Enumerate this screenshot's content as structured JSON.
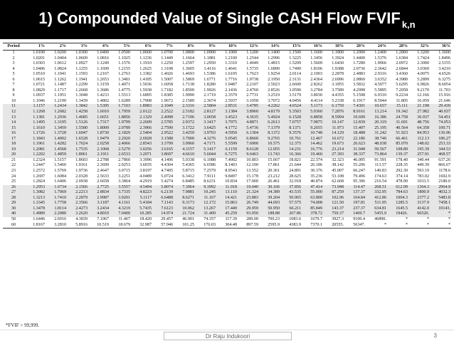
{
  "title": {
    "main": "1) Compounded Value of Single CASH Flow FVIF",
    "subscript": "k,n"
  },
  "table": {
    "headers": [
      "Period",
      "1%",
      "2%",
      "3%",
      "4%",
      "5%",
      "6%",
      "7%",
      "8%",
      "9%",
      "10%",
      "12%",
      "14%",
      "15%",
      "16%",
      "18%",
      "20%",
      "24%",
      "28%",
      "32%",
      "36%"
    ],
    "rows": [
      [
        "1",
        "1.0100",
        "1.0200",
        "1.0300",
        "1.0400",
        "1.0500",
        "1.0600",
        "1.0700",
        "1.0800",
        "1.0900",
        "1.1000",
        "1.1200",
        "1.1400",
        "1.1500",
        "1.1600",
        "1.1800",
        "1.2000",
        "1.2400",
        "1.2800",
        "1.3200",
        "1.3600"
      ],
      [
        "2",
        "1.0201",
        "1.0404",
        "1.0609",
        "1.0816",
        "1.1025",
        "1.1236",
        "1.1449",
        "1.1664",
        "1.1881",
        "1.2100",
        "1.2544",
        "1.2996",
        "1.3225",
        "1.3456",
        "1.3924",
        "1.4400",
        "1.5376",
        "1.6384",
        "1.7424",
        "1.8496"
      ],
      [
        "3",
        "1.0303",
        "1.0612",
        "1.0927",
        "1.1249",
        "1.1576",
        "1.1910",
        "1.2250",
        "1.2597",
        "1.2950",
        "1.3310",
        "1.4049",
        "1.4815",
        "1.5209",
        "1.5609",
        "1.6430",
        "1.7280",
        "1.9066",
        "2.0972",
        "2.3000",
        "2.5155"
      ],
      [
        "4",
        "1.0406",
        "1.0824",
        "1.1255",
        "1.1699",
        "1.2155",
        "1.2625",
        "1.3108",
        "1.3605",
        "1.4116",
        "1.4641",
        "1.5735",
        "1.6890",
        "1.7490",
        "1.8106",
        "1.9388",
        "2.0736",
        "2.3642",
        "2.6844",
        "3.0360",
        "3.4210"
      ],
      [
        "5",
        "1.0510",
        "1.1041",
        "1.1593",
        "1.2167",
        "1.2763",
        "1.3382",
        "1.4026",
        "1.4693",
        "1.5386",
        "1.6105",
        "1.7623",
        "1.9254",
        "2.0114",
        "2.1003",
        "2.2878",
        "2.4883",
        "2.9316",
        "3.4360",
        "4.0075",
        "4.6526"
      ],
      [
        "6",
        "1.0615",
        "1.1262",
        "1.1941",
        "1.2653",
        "1.3401",
        "1.4185",
        "1.5007",
        "1.5869",
        "1.6771",
        "1.7716",
        "1.9738",
        "2.1950",
        "2.3131",
        "2.4364",
        "2.6996",
        "2.9860",
        "3.6352",
        "4.3980",
        "5.2899",
        "6.3275"
      ],
      [
        "7",
        "1.0721",
        "1.1487",
        "1.2299",
        "1.3159",
        "1.4071",
        "1.5036",
        "1.6058",
        "1.7138",
        "1.8280",
        "1.9487",
        "2.2107",
        "2.5023",
        "2.6600",
        "2.8262",
        "3.1855",
        "3.5832",
        "4.5077",
        "5.6295",
        "6.9826",
        "8.6054"
      ],
      [
        "8",
        "1.0829",
        "1.1717",
        "1.2668",
        "1.3686",
        "1.4775",
        "1.5938",
        "1.7182",
        "1.8509",
        "1.9926",
        "2.1436",
        "2.4760",
        "2.8526",
        "3.0590",
        "3.2784",
        "3.7589",
        "4.2998",
        "5.5895",
        "7.2058",
        "9.2170",
        "11.703"
      ],
      [
        "9",
        "1.0937",
        "1.1951",
        "1.3048",
        "1.4233",
        "1.5513",
        "1.6895",
        "1.8385",
        "1.9990",
        "2.1719",
        "2.3579",
        "2.7731",
        "3.2519",
        "3.5179",
        "3.8030",
        "4.4355",
        "5.1598",
        "6.9310",
        "9.2234",
        "12.166",
        "15.916"
      ],
      [
        "10",
        "1.1046",
        "1.2190",
        "1.3439",
        "1.4802",
        "1.6289",
        "1.7908",
        "1.9672",
        "2.1589",
        "2.3674",
        "2.5937",
        "3.1058",
        "3.7072",
        "4.0456",
        "4.4114",
        "5.2338",
        "6.1917",
        "8.5944",
        "11.805",
        "16.059",
        "21.646"
      ],
      [
        "11",
        "1.1157",
        "1.2434",
        "1.3842",
        "1.5395",
        "1.7103",
        "1.8983",
        "2.1049",
        "2.3316",
        "2.5804",
        "2.8531",
        "3.4785",
        "4.2262",
        "4.6524",
        "5.1173",
        "6.1759",
        "7.4301",
        "10.657",
        "15.111",
        "21.198",
        "29.439"
      ],
      [
        "12",
        "1.1268",
        "1.2682",
        "1.4258",
        "1.6010",
        "1.7959",
        "2.0122",
        "2.2522",
        "2.5182",
        "2.8127",
        "3.1384",
        "3.8960",
        "4.8179",
        "5.3503",
        "5.9360",
        "7.2876",
        "8.9161",
        "13.214",
        "19.342",
        "27.982",
        "40.037"
      ],
      [
        "13",
        "1.1381",
        "1.2936",
        "1.4685",
        "1.6651",
        "1.8856",
        "2.1329",
        "2.4098",
        "2.7196",
        "3.0658",
        "3.4523",
        "4.3635",
        "5.4924",
        "6.1528",
        "6.8858",
        "8.5994",
        "10.699",
        "16.386",
        "24.758",
        "36.937",
        "54.451"
      ],
      [
        "14",
        "1.1495",
        "1.3195",
        "1.5126",
        "1.7317",
        "1.9799",
        "2.2609",
        "2.5785",
        "2.9372",
        "3.3417",
        "3.7975",
        "4.8871",
        "6.2613",
        "7.0757",
        "7.9875",
        "10.147",
        "12.839",
        "20.319",
        "31.691",
        "48.756",
        "74.053"
      ],
      [
        "15",
        "1.1610",
        "1.3459",
        "1.5580",
        "1.8009",
        "2.0789",
        "2.3966",
        "2.7590",
        "3.1722",
        "3.6425",
        "4.1772",
        "5.4736",
        "7.1379",
        "8.1371",
        "9.2655",
        "11.973",
        "15.407",
        "25.195",
        "40.564",
        "64.358",
        "100.71"
      ],
      [
        "16",
        "1.1726",
        "1.3728",
        "1.6047",
        "1.8730",
        "2.1829",
        "2.5404",
        "2.9522",
        "3.4259",
        "3.9703",
        "4.5950",
        "6.1304",
        "8.1372",
        "9.3576",
        "10.748",
        "14.129",
        "18.488",
        "31.242",
        "51.923",
        "84.953",
        "136.96"
      ],
      [
        "17",
        "1.1843",
        "1.4002",
        "1.6528",
        "1.9479",
        "2.2920",
        "2.6928",
        "3.1588",
        "3.7000",
        "4.3276",
        "5.0545",
        "6.8660",
        "9.2765",
        "10.761",
        "12.467",
        "16.672",
        "22.186",
        "38.740",
        "66.461",
        "112.13",
        "186.27"
      ],
      [
        "18",
        "1.1961",
        "1.4282",
        "1.7024",
        "2.0258",
        "2.4066",
        "2.8543",
        "3.3799",
        "3.9960",
        "4.7171",
        "5.5599",
        "7.6900",
        "10.575",
        "12.375",
        "14.462",
        "19.673",
        "26.623",
        "48.038",
        "85.070",
        "148.02",
        "253.33"
      ],
      [
        "19",
        "1.2081",
        "1.4568",
        "1.7535",
        "2.1068",
        "2.5270",
        "3.0256",
        "3.6165",
        "4.3157",
        "5.1417",
        "6.1159",
        "8.6128",
        "12.055",
        "14.231",
        "16.776",
        "23.214",
        "31.948",
        "59.567",
        "108.89",
        "195.39",
        "344.53"
      ],
      [
        "20",
        "1.2202",
        "1.4859",
        "1.8061",
        "2.1911",
        "2.6533",
        "3.2071",
        "3.8697",
        "4.6610",
        "5.6044",
        "6.7275",
        "9.6463",
        "13.743",
        "16.366",
        "19.460",
        "27.393",
        "38.337",
        "73.864",
        "139.37",
        "257.91",
        "468.57"
      ],
      [
        "21",
        "1.2324",
        "1.5157",
        "1.8603",
        "2.2788",
        "2.7860",
        "3.3996",
        "4.1406",
        "5.0338",
        "6.1088",
        "7.4002",
        "10.803",
        "15.667",
        "18.821",
        "22.574",
        "32.323",
        "46.005",
        "91.591",
        "178.40",
        "340.44",
        "637.26"
      ],
      [
        "22",
        "1.2447",
        "1.5460",
        "1.9161",
        "2.3699",
        "2.9253",
        "3.6035",
        "4.4304",
        "5.4365",
        "6.6586",
        "8.1403",
        "12.100",
        "17.861",
        "21.644",
        "26.186",
        "38.142",
        "55.206",
        "113.57",
        "228.35",
        "449.39",
        "866.67"
      ],
      [
        "23",
        "1.2572",
        "1.5769",
        "1.9736",
        "2.4647",
        "3.0715",
        "3.8197",
        "4.7405",
        "5.8715",
        "7.2579",
        "8.9543",
        "13.552",
        "20.361",
        "24.891",
        "30.376",
        "45.007",
        "66.247",
        "140.83",
        "292.30",
        "593.19",
        "1178.6"
      ],
      [
        "24",
        "1.2697",
        "1.6084",
        "2.0328",
        "2.5633",
        "3.2251",
        "4.0489",
        "5.0724",
        "6.3412",
        "7.9111",
        "9.8497",
        "15.178",
        "23.212",
        "28.625",
        "35.236",
        "53.108",
        "79.496",
        "174.63",
        "374.14",
        "783.02",
        "1602.9"
      ],
      [
        "25",
        "1.2824",
        "1.6406",
        "2.0938",
        "2.6658",
        "3.3864",
        "4.2919",
        "5.4274",
        "6.8485",
        "8.6231",
        "10.834",
        "17.000",
        "26.461",
        "32.918",
        "40.874",
        "62.668",
        "95.396",
        "216.54",
        "478.90",
        "1033.5",
        "2180.0"
      ],
      [
        "26",
        "1.2953",
        "1.6734",
        "2.1566",
        "2.7725",
        "3.5557",
        "4.5494",
        "5.8074",
        "7.3964",
        "9.3992",
        "11.918",
        "19.040",
        "30.166",
        "37.856",
        "47.414",
        "73.948",
        "114.47",
        "268.51",
        "612.99",
        "1364.3",
        "2964.9"
      ],
      [
        "27",
        "1.3082",
        "1.7069",
        "2.2213",
        "2.8834",
        "3.7335",
        "4.8223",
        "6.2139",
        "7.9881",
        "10.245",
        "13.110",
        "21.324",
        "34.389",
        "43.535",
        "55.000",
        "87.259",
        "137.37",
        "332.95",
        "784.63",
        "1800.9",
        "4032.3"
      ],
      [
        "28",
        "1.3213",
        "1.7410",
        "2.2879",
        "2.9987",
        "3.9201",
        "5.1117",
        "6.6488",
        "8.6271",
        "11.167",
        "14.421",
        "23.883",
        "39.204",
        "50.065",
        "63.800",
        "102.96",
        "164.84",
        "412.86",
        "1004.3",
        "2377.2",
        "5483.8"
      ],
      [
        "29",
        "1.3345",
        "1.7758",
        "2.3566",
        "3.1187",
        "4.1161",
        "5.4184",
        "7.1143",
        "9.3173",
        "12.172",
        "15.863",
        "26.749",
        "44.693",
        "57.575",
        "74.008",
        "121.50",
        "197.81",
        "511.95",
        "1285.5",
        "3137.9",
        "7458.1"
      ],
      [
        "30",
        "1.3478",
        "1.8114",
        "2.4273",
        "3.2434",
        "4.3219",
        "5.7435",
        "7.6123",
        "10.062",
        "13.267",
        "17.449",
        "29.959",
        "50.950",
        "66.211",
        "85.849",
        "143.37",
        "237.37",
        "634.81",
        "1645.5",
        "4142.0",
        "10143."
      ],
      [
        "40",
        "1.4889",
        "2.2080",
        "3.2620",
        "4.8010",
        "7.0400",
        "10.285",
        "14.974",
        "21.724",
        "31.409",
        "45.259",
        "93.050",
        "188.88",
        "267.86",
        "378.72",
        "750.37",
        "1469.7",
        "5455.9",
        "19426.",
        "66520.",
        "*"
      ],
      [
        "50",
        "1.6446",
        "2.6916",
        "4.3839",
        "7.1067",
        "11.467",
        "18.420",
        "29.457",
        "46.901",
        "74.357",
        "117.39",
        "289.00",
        "700.23",
        "1083.6",
        "1670.7",
        "3927.3",
        "9100.4",
        "46890.",
        "*",
        "*",
        "*"
      ],
      [
        "60",
        "1.8167",
        "3.2810",
        "5.8916",
        "10.519",
        "18.679",
        "32.987",
        "57.946",
        "101.25",
        "176.03",
        "304.48",
        "897.59",
        "2595.9",
        "4383.9",
        "7370.1",
        "20555.",
        "56347.",
        "*",
        "*",
        "*",
        "*"
      ]
    ],
    "footnote": "*FVIF > 99,999."
  },
  "footer": {
    "author": "Dr Raju Indukoori",
    "page": "3"
  }
}
